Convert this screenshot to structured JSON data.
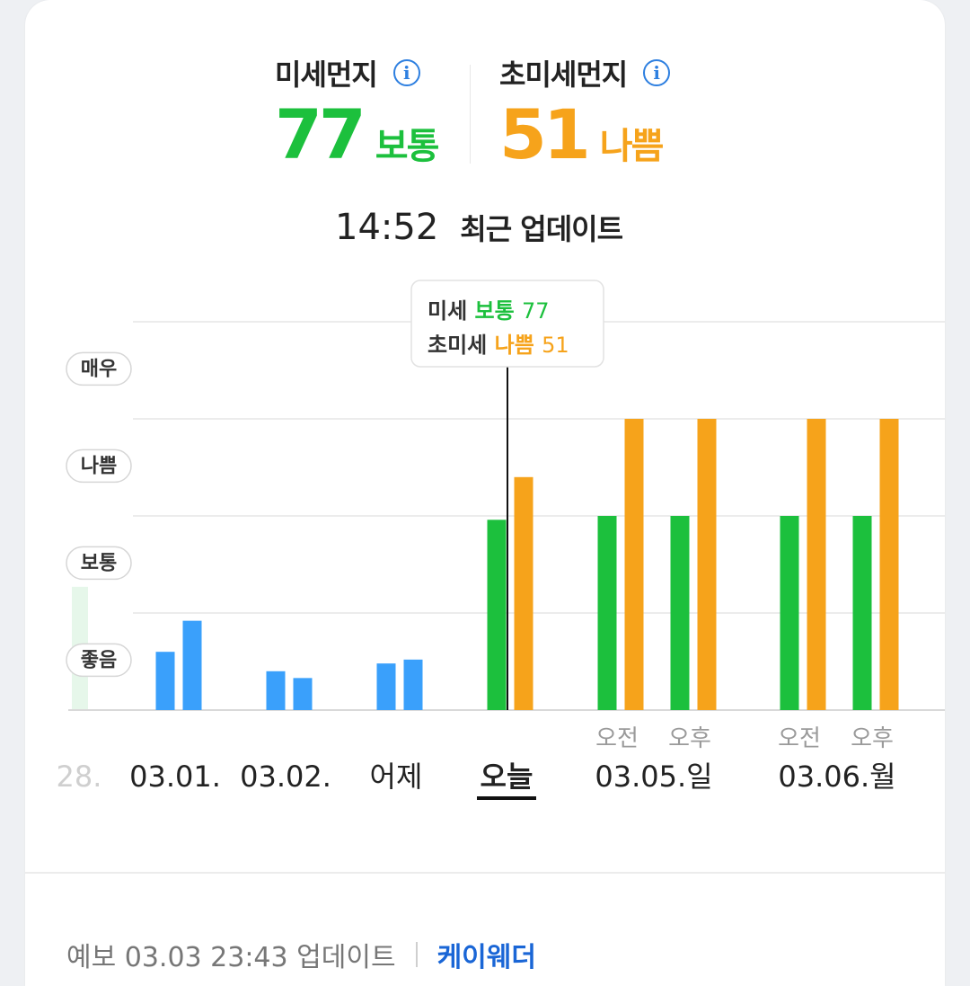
{
  "pm10": {
    "title": "미세먼지",
    "value": "77",
    "grade": "보통",
    "color": "#1cc03d"
  },
  "pm25": {
    "title": "초미세먼지",
    "value": "51",
    "grade": "나쁨",
    "color": "#f6a31b"
  },
  "info_icon_glyph": "i",
  "update": {
    "time": "14:52",
    "label": "최근 업데이트"
  },
  "tooltip": {
    "row1": {
      "label": "미세",
      "grade": "보통",
      "value": "77"
    },
    "row2": {
      "label": "초미세",
      "grade": "나쁨",
      "value": "51"
    }
  },
  "forecast": {
    "label": "예보 03.03 23:43 업데이트",
    "provider": "케이웨더"
  },
  "colors": {
    "past": "#3aa0fb",
    "pm10": "#1cc03d",
    "pm25": "#f6a31b",
    "grid": "#ececec",
    "text": "#222222",
    "muted": "#9a9a9a"
  },
  "chart_data": {
    "type": "bar",
    "levels": [
      "좋음",
      "보통",
      "나쁨",
      "매우"
    ],
    "level_scale": "index of level; 0 = baseline, 1 = 좋음, 2 = 보통, 3 = 나쁨, 4 = 매우",
    "ylim": [
      0,
      4
    ],
    "grid": true,
    "categories": [
      "28.",
      "03.01.",
      "03.02.",
      "어제",
      "오늘",
      "03.05.일 오전",
      "03.05.일 오후",
      "03.06.월 오전",
      "03.06.월 오후"
    ],
    "day_labels": [
      "28.",
      "03.01.",
      "03.02.",
      "어제",
      "오늘",
      "03.05.일",
      "03.06.월"
    ],
    "sub_labels": [
      "오전",
      "오후",
      "오전",
      "오후"
    ],
    "selected": "오늘",
    "series": [
      {
        "values": [
          null,
          0.6,
          0.4,
          0.48,
          1.96,
          2.0,
          2.0,
          2.0,
          2.0
        ]
      },
      {
        "values": [
          null,
          0.92,
          0.33,
          0.52,
          2.4,
          3.0,
          3.0,
          3.0,
          3.0
        ]
      }
    ]
  }
}
